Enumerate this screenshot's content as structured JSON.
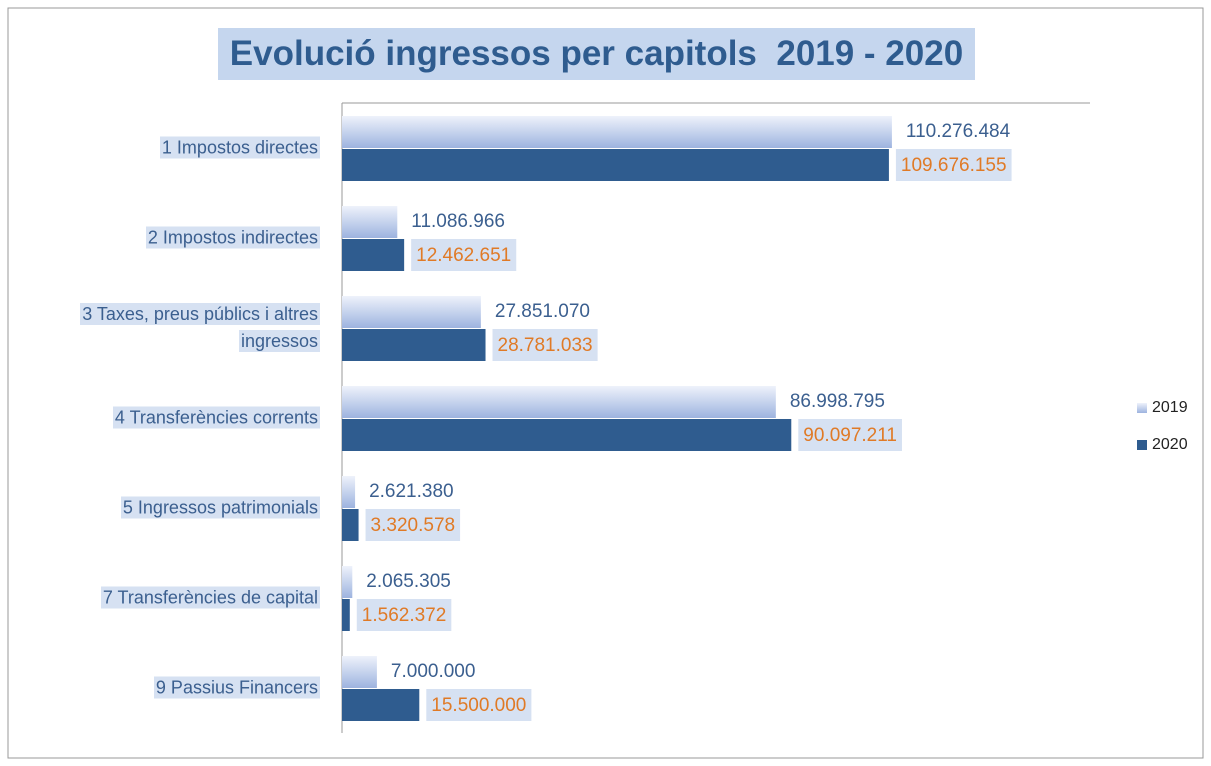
{
  "chart_data": {
    "type": "hbar",
    "title": "Evolució ingressos per capitols  2019 - 2020",
    "categories": [
      "1 Impostos directes",
      "2 Impostos indirectes",
      "3 Taxes, preus públics i altres ingressos",
      "4 Transferències corrents",
      "5 Ingressos patrimonials",
      "7 Transferències de capital",
      "9 Passius Financers"
    ],
    "series": [
      {
        "name": "2019",
        "color": "#9db3df",
        "values": [
          110276484,
          11086966,
          27851070,
          86998795,
          2621380,
          2065305,
          7000000
        ],
        "value_labels": [
          "110.276.484",
          "11.086.966",
          "27.851.070",
          "86.998.795",
          "2.621.380",
          "2.065.305",
          "7.000.000"
        ]
      },
      {
        "name": "2020",
        "color": "#2f5c8f",
        "values": [
          109676155,
          12462651,
          28781033,
          90097211,
          3320578,
          1562372,
          15500000
        ],
        "value_labels": [
          "109.676.155",
          "12.462.651",
          "28.781.033",
          "90.097.211",
          "3.320.578",
          "1.562.372",
          "15.500.000"
        ]
      }
    ],
    "xlim": [
      0,
      150000000
    ],
    "legend": "right"
  }
}
